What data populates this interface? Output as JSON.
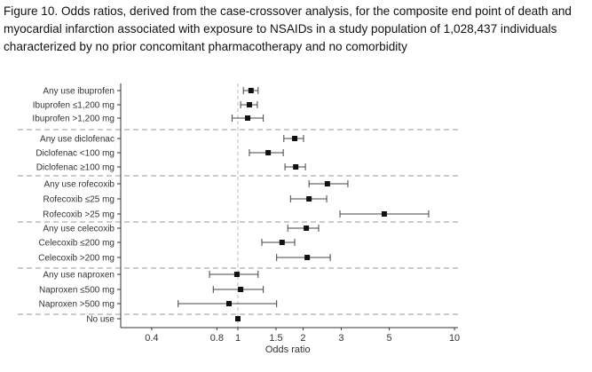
{
  "figure_title": "Figure 10. Odds ratios, derived from the case-crossover analysis, for the composite end point of death and myocardial infarction associated with exposure to NSAIDs in a study population of 1,028,437 individuals characterized by no prior concomitant pharmacotherapy and no comorbidity",
  "chart_data": {
    "type": "forest",
    "xlabel": "Odds ratio",
    "xscale": "log",
    "xlim": [
      0.29,
      10
    ],
    "xticks": [
      0.4,
      0.8,
      1,
      1.5,
      2,
      3,
      5,
      10
    ],
    "reference_line": 1,
    "groups": [
      {
        "rows": [
          {
            "label": "Any use ibuprofen",
            "or": 1.15,
            "lo": 1.06,
            "hi": 1.24
          },
          {
            "label": "Ibuprofen ≤1,200 mg",
            "or": 1.13,
            "lo": 1.03,
            "hi": 1.23
          },
          {
            "label": "Ibuprofen >1,200 mg",
            "or": 1.11,
            "lo": 0.94,
            "hi": 1.31
          }
        ]
      },
      {
        "rows": [
          {
            "label": "Any use diclofenac",
            "or": 1.83,
            "lo": 1.63,
            "hi": 2.01
          },
          {
            "label": "Diclofenac <100 mg",
            "or": 1.38,
            "lo": 1.13,
            "hi": 1.62
          },
          {
            "label": "Diclofenac ≥100 mg",
            "or": 1.85,
            "lo": 1.65,
            "hi": 2.05
          }
        ]
      },
      {
        "rows": [
          {
            "label": "Any use rofecoxib",
            "or": 2.59,
            "lo": 2.13,
            "hi": 3.22
          },
          {
            "label": "Rofecoxib ≤25 mg",
            "or": 2.13,
            "lo": 1.75,
            "hi": 2.57
          },
          {
            "label": "Rofecoxib >25 mg",
            "or": 4.74,
            "lo": 2.96,
            "hi": 7.6
          }
        ]
      },
      {
        "rows": [
          {
            "label": "Any use celecoxib",
            "or": 2.07,
            "lo": 1.7,
            "hi": 2.36
          },
          {
            "label": "Celecoxib ≤200 mg",
            "or": 1.6,
            "lo": 1.29,
            "hi": 1.83
          },
          {
            "label": "Celecoxib >200 mg",
            "or": 2.09,
            "lo": 1.51,
            "hi": 2.67
          }
        ]
      },
      {
        "rows": [
          {
            "label": "Any use naproxen",
            "or": 0.99,
            "lo": 0.74,
            "hi": 1.24
          },
          {
            "label": "Naproxen ≤500 mg",
            "or": 1.03,
            "lo": 0.77,
            "hi": 1.31
          },
          {
            "label": "Naproxen >500 mg",
            "or": 0.91,
            "lo": 0.53,
            "hi": 1.51
          }
        ]
      },
      {
        "rows": [
          {
            "label": "No use",
            "or": 1.0,
            "lo": 1.0,
            "hi": 1.0
          }
        ]
      }
    ]
  }
}
